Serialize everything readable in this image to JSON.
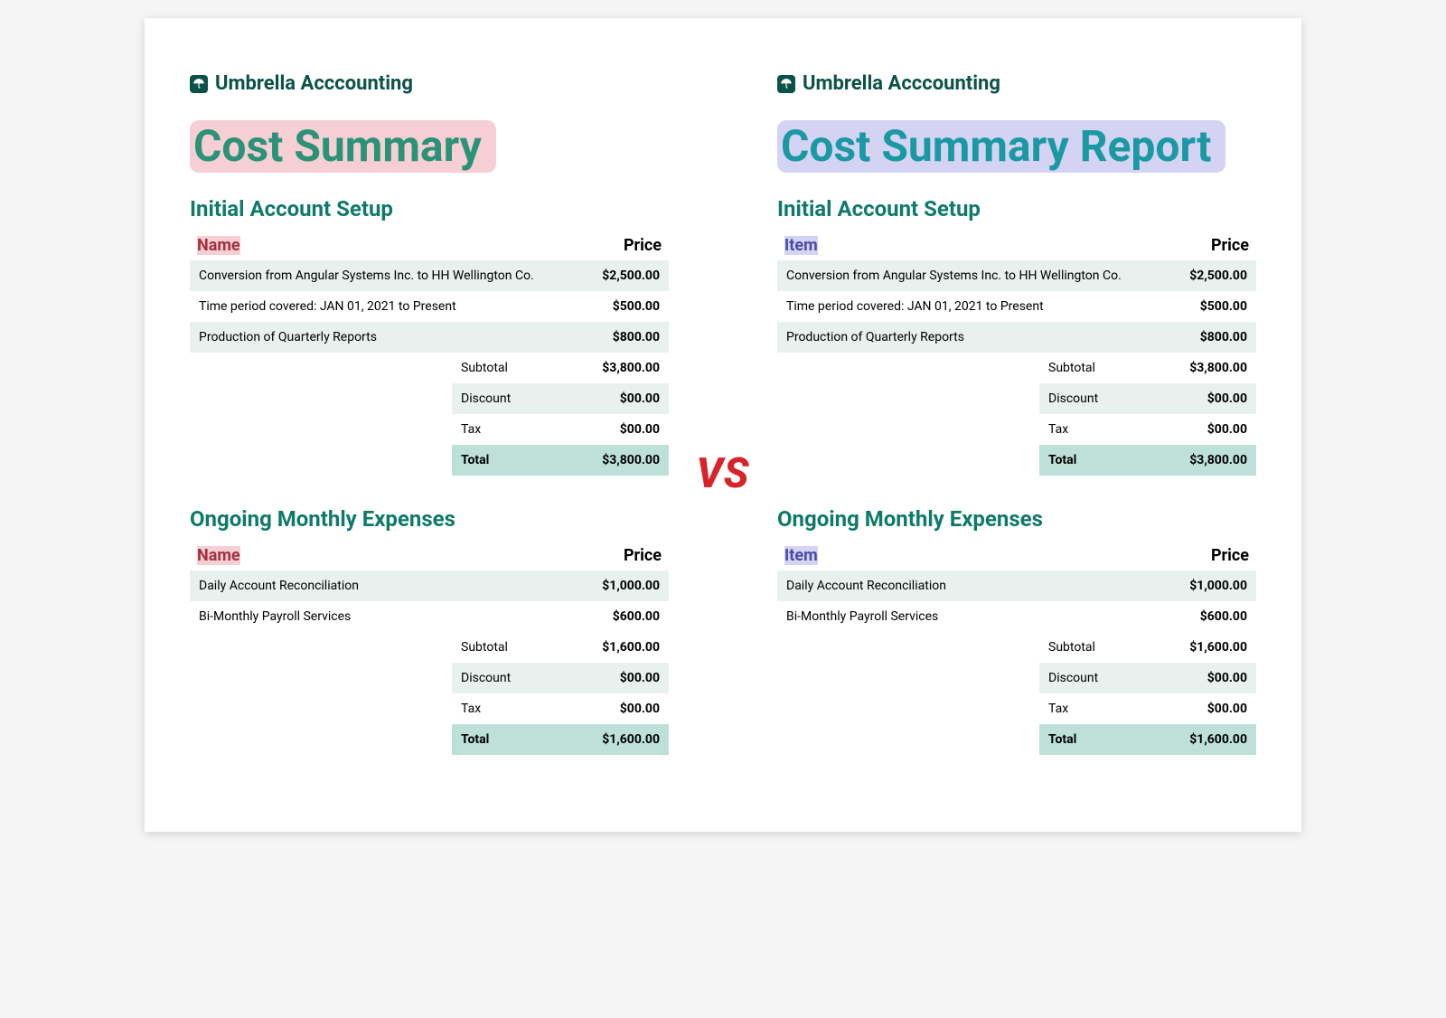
{
  "colors": {
    "brand_dark": "#0c5248",
    "teal_left_title": "#2a9276",
    "teal_right_title": "#1a99a3",
    "section_heading": "#0f7a6a",
    "highlight_pink": "#f6cfd4",
    "highlight_lavender": "#d5d3f4",
    "row_stripe": "#e8f1ee",
    "row_total": "#bde1d8",
    "vs_red": "#d8232a",
    "text_default": "#222222",
    "col_header_red": "#a4303f",
    "col_header_purple": "#4a4aa5"
  },
  "brand": {
    "name": "Umbrella Acccounting",
    "icon": "umbrella"
  },
  "vs_label": "VS",
  "left": {
    "title": "Cost Summary",
    "col_name_label": "Name",
    "col_price_label": "Price",
    "highlight_color_key": "highlight_pink",
    "title_color_key": "teal_left_title",
    "col_name_color_key": "col_header_red"
  },
  "right": {
    "title": "Cost Summary Report",
    "col_name_label": "Item",
    "col_price_label": "Price",
    "highlight_color_key": "highlight_lavender",
    "title_color_key": "teal_right_title",
    "col_name_color_key": "col_header_purple"
  },
  "sections": [
    {
      "heading": "Initial Account Setup",
      "rows": [
        {
          "name": "Conversion from Angular Systems Inc. to HH Wellington Co.",
          "price": "$2,500.00"
        },
        {
          "name": "Time period covered: JAN 01, 2021 to Present",
          "price": "$500.00"
        },
        {
          "name": "Production of Quarterly Reports",
          "price": "$800.00"
        }
      ],
      "summary": {
        "subtotal_label": "Subtotal",
        "subtotal": "$3,800.00",
        "discount_label": "Discount",
        "discount": "$00.00",
        "tax_label": "Tax",
        "tax": "$00.00",
        "total_label": "Total",
        "total": "$3,800.00"
      }
    },
    {
      "heading": "Ongoing Monthly Expenses",
      "rows": [
        {
          "name": "Daily Account Reconciliation",
          "price": "$1,000.00"
        },
        {
          "name": "Bi-Monthly Payroll Services",
          "price": "$600.00"
        }
      ],
      "summary": {
        "subtotal_label": "Subtotal",
        "subtotal": "$1,600.00",
        "discount_label": "Discount",
        "discount": "$00.00",
        "tax_label": "Tax",
        "tax": "$00.00",
        "total_label": "Total",
        "total": "$1,600.00"
      }
    }
  ]
}
